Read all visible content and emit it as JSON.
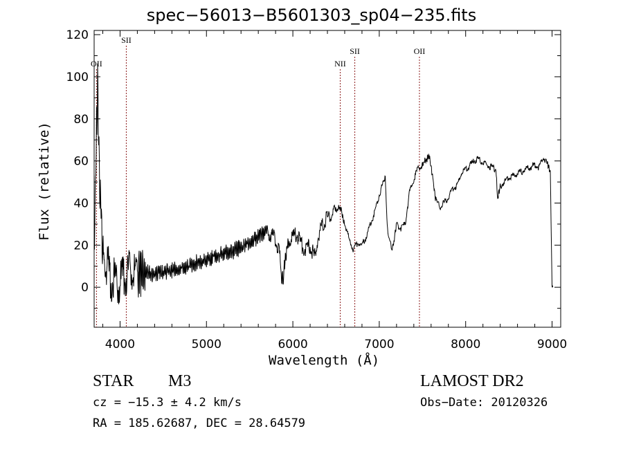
{
  "chart_data": {
    "type": "line",
    "title": "spec−56013−B5601303_sp04−235.fits",
    "xlabel": "Wavelength (Å)",
    "ylabel": "Flux (relative)",
    "xlim": [
      3700,
      9100
    ],
    "ylim": [
      -19,
      122
    ],
    "x_ticks": [
      4000,
      5000,
      6000,
      7000,
      8000,
      9000
    ],
    "x_tick_labels": [
      "4000",
      "5000",
      "6000",
      "7000",
      "8000",
      "9000"
    ],
    "y_ticks": [
      0,
      20,
      40,
      60,
      80,
      100,
      120
    ],
    "y_tick_labels": [
      "0",
      "20",
      "40",
      "60",
      "80",
      "100",
      "120"
    ],
    "grid": false,
    "line_color": "#000000",
    "marker_line_color": "#8b1a1a",
    "series": [
      {
        "x": [
          3700,
          3720,
          3740,
          3760,
          3780,
          3800,
          3850,
          3900,
          3950,
          4000,
          4050,
          4100,
          4150,
          4200,
          4300,
          4400,
          4500,
          4600,
          4700,
          4800,
          4900,
          5000,
          5100,
          5200,
          5300,
          5400,
          5500,
          5600,
          5700,
          5750,
          5800,
          5850,
          5870,
          5890,
          5920,
          5950,
          6000,
          6050,
          6100,
          6150,
          6200,
          6250,
          6300,
          6350,
          6400,
          6450,
          6500,
          6530,
          6560,
          6580,
          6600,
          6650,
          6700,
          6750,
          6800,
          6850,
          6900,
          6950,
          7000,
          7050,
          7070,
          7080,
          7100,
          7150,
          7170,
          7200,
          7250,
          7300,
          7350,
          7400,
          7450,
          7500,
          7520,
          7550,
          7580,
          7620,
          7650,
          7700,
          7750,
          7800,
          7850,
          7900,
          7950,
          8000,
          8050,
          8100,
          8150,
          8200,
          8250,
          8300,
          8350,
          8370,
          8400,
          8450,
          8500,
          8550,
          8600,
          8650,
          8700,
          8750,
          8800,
          8850,
          8900,
          8950,
          8980,
          9000,
          9010
        ],
        "y": [
          15,
          60,
          95,
          55,
          35,
          20,
          10,
          4,
          2,
          3,
          5,
          6,
          8,
          7,
          7,
          6,
          7,
          8,
          9,
          10,
          12,
          13,
          15,
          16,
          17,
          19,
          21,
          24,
          27,
          25,
          23,
          15,
          2,
          5,
          16,
          22,
          24,
          25,
          20,
          18,
          20,
          14,
          25,
          30,
          33,
          35,
          36,
          38,
          37,
          33,
          30,
          23,
          18,
          21,
          20,
          24,
          30,
          36,
          44,
          50,
          52,
          40,
          25,
          18,
          22,
          30,
          28,
          30,
          45,
          51,
          57,
          58,
          60,
          61,
          62,
          52,
          42,
          38,
          40,
          43,
          47,
          48,
          54,
          56,
          58,
          60,
          61,
          59,
          58,
          57,
          56,
          42,
          48,
          50,
          52,
          53,
          54,
          55,
          56,
          57,
          58,
          57,
          62,
          58,
          55,
          0,
          0
        ]
      }
    ],
    "line_markers": [
      {
        "label": "OII",
        "x": 3727,
        "label_level": "mid"
      },
      {
        "label": "SII",
        "x": 4072,
        "label_level": "high"
      },
      {
        "label": "NII",
        "x": 6548,
        "label_level": "mid"
      },
      {
        "label": "SII",
        "x": 6717,
        "label_level": "upper"
      },
      {
        "label": "OII",
        "x": 7465,
        "label_level": "upper"
      }
    ]
  },
  "info": {
    "object_class": "STAR",
    "subclass": "M3",
    "survey": "LAMOST DR2",
    "redshift": "cz = −15.3 ± 4.2 km/s",
    "obs_date": "Obs−Date: 20120326",
    "coords": "RA = 185.62687, DEC =  28.64579"
  }
}
